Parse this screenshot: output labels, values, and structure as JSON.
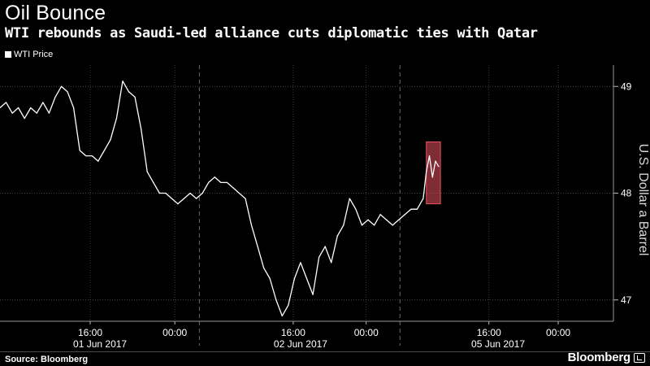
{
  "header": {
    "title": "Oil Bounce",
    "subtitle": "WTI rebounds as Saudi-led alliance cuts diplomatic ties with Qatar"
  },
  "footer": {
    "source": "Source: Bloomberg",
    "brand": "Bloomberg"
  },
  "chart_data": {
    "type": "line",
    "title": "Oil Bounce",
    "subtitle": "WTI rebounds as Saudi-led alliance cuts diplomatic ties with Qatar",
    "ylabel": "U.S. Dollar a Barrel",
    "ylim": [
      46.8,
      49.2
    ],
    "yticks": [
      47,
      48,
      49
    ],
    "legend": "top-left",
    "grid": true,
    "x_time_ticks": [
      "16:00",
      "00:00",
      "16:00",
      "00:00",
      "16:00",
      "00:00"
    ],
    "x_date_labels": [
      "01 Jun 2017",
      "02 Jun 2017",
      "05 Jun 2017"
    ],
    "highlight": {
      "x_range": [
        0.695,
        0.718
      ],
      "y_range": [
        47.9,
        48.48
      ],
      "color": "#e8515f"
    },
    "series": [
      {
        "name": "WTI Price",
        "color": "#ffffff",
        "x": [
          0.0,
          0.01,
          0.02,
          0.03,
          0.04,
          0.05,
          0.06,
          0.07,
          0.08,
          0.09,
          0.1,
          0.11,
          0.12,
          0.13,
          0.14,
          0.15,
          0.16,
          0.17,
          0.18,
          0.19,
          0.2,
          0.21,
          0.22,
          0.23,
          0.24,
          0.25,
          0.26,
          0.27,
          0.28,
          0.29,
          0.3,
          0.31,
          0.32,
          0.33,
          0.34,
          0.35,
          0.36,
          0.37,
          0.38,
          0.39,
          0.4,
          0.41,
          0.42,
          0.43,
          0.44,
          0.45,
          0.46,
          0.47,
          0.48,
          0.49,
          0.5,
          0.51,
          0.52,
          0.53,
          0.54,
          0.55,
          0.56,
          0.57,
          0.58,
          0.59,
          0.6,
          0.61,
          0.62,
          0.63,
          0.64,
          0.65,
          0.66,
          0.67,
          0.68,
          0.69,
          0.695,
          0.7,
          0.705,
          0.71,
          0.715
        ],
        "values": [
          48.8,
          48.85,
          48.75,
          48.8,
          48.7,
          48.8,
          48.75,
          48.85,
          48.75,
          48.9,
          49.0,
          48.95,
          48.8,
          48.4,
          48.35,
          48.35,
          48.3,
          48.4,
          48.5,
          48.7,
          49.05,
          48.95,
          48.9,
          48.6,
          48.2,
          48.1,
          48.0,
          48.0,
          47.95,
          47.9,
          47.95,
          48.0,
          47.95,
          48.0,
          48.1,
          48.15,
          48.1,
          48.1,
          48.05,
          48.0,
          47.95,
          47.7,
          47.5,
          47.3,
          47.2,
          47.0,
          46.85,
          46.95,
          47.2,
          47.35,
          47.2,
          47.05,
          47.4,
          47.5,
          47.35,
          47.6,
          47.7,
          47.95,
          47.85,
          47.7,
          47.75,
          47.7,
          47.8,
          47.75,
          47.7,
          47.75,
          47.8,
          47.85,
          47.85,
          47.95,
          48.2,
          48.35,
          48.15,
          48.3,
          48.25
        ]
      }
    ]
  }
}
